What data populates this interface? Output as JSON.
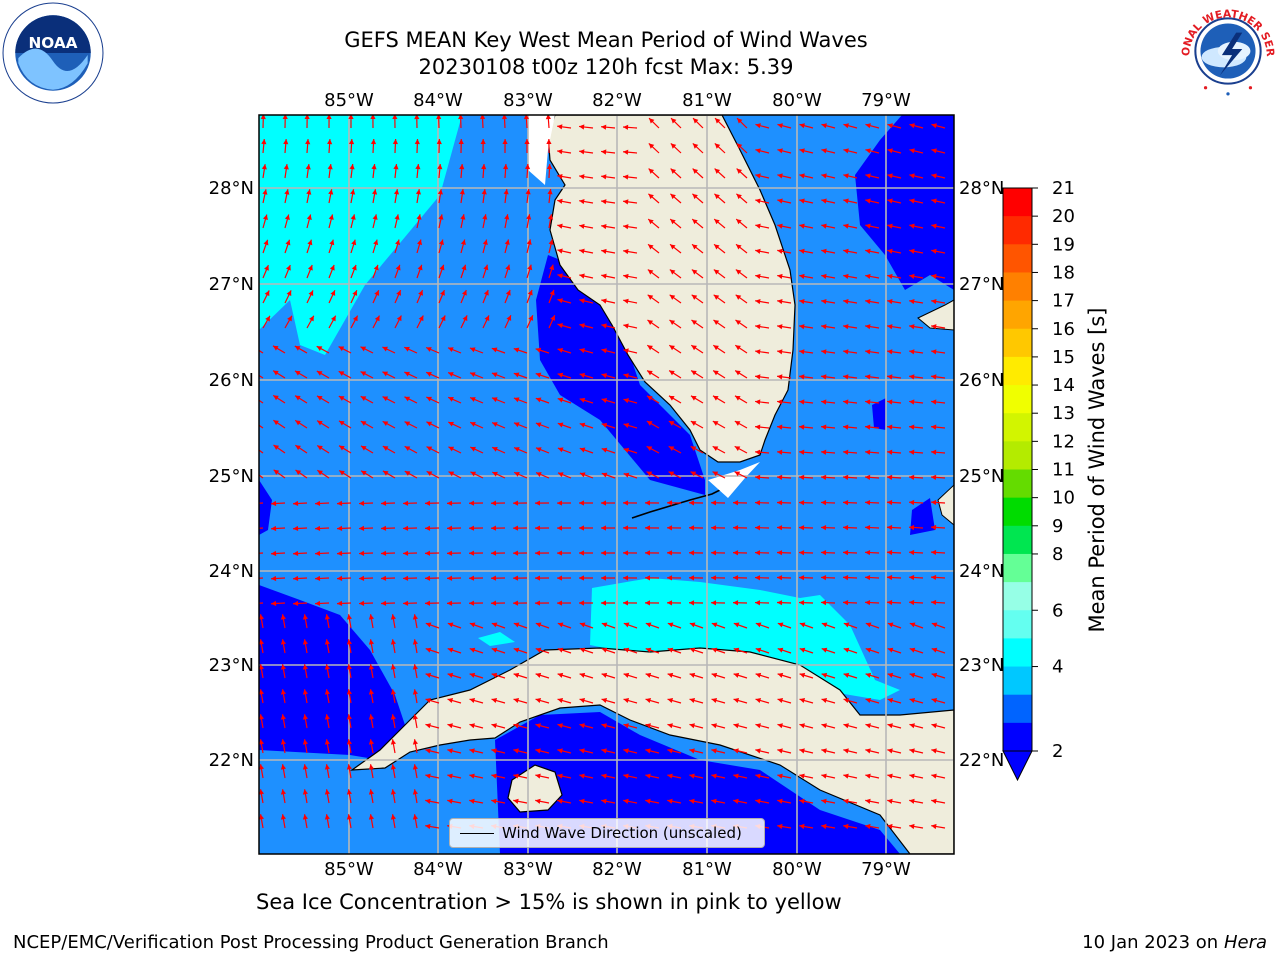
{
  "title": {
    "line1": "GEFS MEAN Key West Mean Period of Wind Waves",
    "line2": "20230108 t00z 120h fcst   Max: 5.39"
  },
  "map": {
    "lon_labels": [
      "85°W",
      "84°W",
      "83°W",
      "82°W",
      "81°W",
      "80°W",
      "79°W"
    ],
    "lat_labels": [
      "28°N",
      "27°N",
      "26°N",
      "25°N",
      "24°N",
      "23°N",
      "22°N"
    ],
    "legend_label": "Wind Wave Direction (unscaled)",
    "arrow_color": "#ff0000",
    "land_color": "#efeddc",
    "grid_color": "#b8b8b8"
  },
  "colorbar": {
    "title": "Mean Period of Wind Waves [s]",
    "ticks": [
      "21",
      "20",
      "19",
      "18",
      "17",
      "16",
      "15",
      "14",
      "13",
      "12",
      "11",
      "10",
      "9",
      "8",
      "6",
      "4",
      "2"
    ],
    "colors": [
      "#ff0000",
      "#ff2a00",
      "#ff5500",
      "#ff8000",
      "#ffa500",
      "#ffc800",
      "#ffeb00",
      "#f0ff00",
      "#d2f500",
      "#b4eb00",
      "#64dc00",
      "#00dc00",
      "#00e650",
      "#64ff96",
      "#96ffe6",
      "#64fff0",
      "#00ffff",
      "#00c8ff",
      "#0064ff",
      "#0000ff"
    ]
  },
  "captions": {
    "ice": "Sea Ice Concentration > 15% is shown in pink to yellow",
    "footer_left": "NCEP/EMC/Verification Post Processing Product Generation Branch",
    "footer_date": "10 Jan 2023 on ",
    "footer_host": "Hera"
  },
  "logos": {
    "noaa_text": "NOAA",
    "nws_text": "NATIONAL WEATHER SERVICE"
  }
}
